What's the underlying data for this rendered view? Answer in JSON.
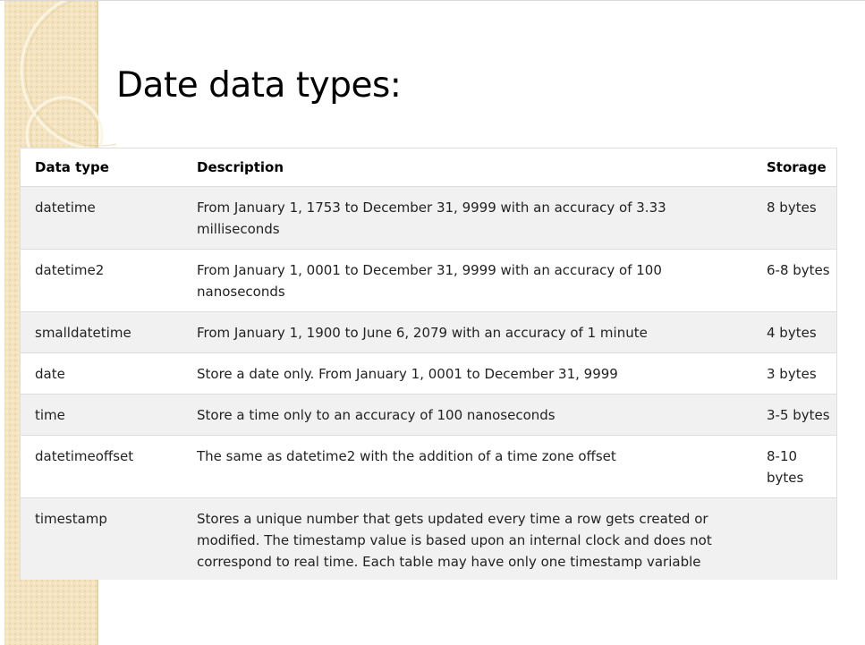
{
  "slide": {
    "title": "Date data types:"
  },
  "table": {
    "headers": {
      "type": "Data type",
      "description": "Description",
      "storage": "Storage"
    },
    "rows": [
      {
        "type": "datetime",
        "description": "From January 1, 1753 to December 31, 9999 with an accuracy of 3.33 milliseconds",
        "storage": "8 bytes"
      },
      {
        "type": "datetime2",
        "description": "From January 1, 0001 to December 31, 9999 with an accuracy of 100 nanoseconds",
        "storage": "6-8 bytes"
      },
      {
        "type": "smalldatetime",
        "description": "From January 1, 1900 to June 6, 2079 with an accuracy of 1 minute",
        "storage": "4 bytes"
      },
      {
        "type": "date",
        "description": "Store a date only. From January 1, 0001 to December 31, 9999",
        "storage": "3 bytes"
      },
      {
        "type": "time",
        "description": "Store a time only to an accuracy of 100 nanoseconds",
        "storage": "3-5 bytes"
      },
      {
        "type": "datetimeoffset",
        "description": "The same as datetime2 with the addition of a time zone offset",
        "storage": "8-10 bytes"
      },
      {
        "type": "timestamp",
        "description": "Stores a unique number that gets updated every time a row gets created or modified. The timestamp value is based upon an internal clock and does not correspond to real time. Each table may have only one timestamp variable",
        "storage": ""
      }
    ]
  },
  "theme": {
    "band_color": "#f4e3bf",
    "stripe_color": "#f1f1f1",
    "border_color": "#dddddd"
  }
}
